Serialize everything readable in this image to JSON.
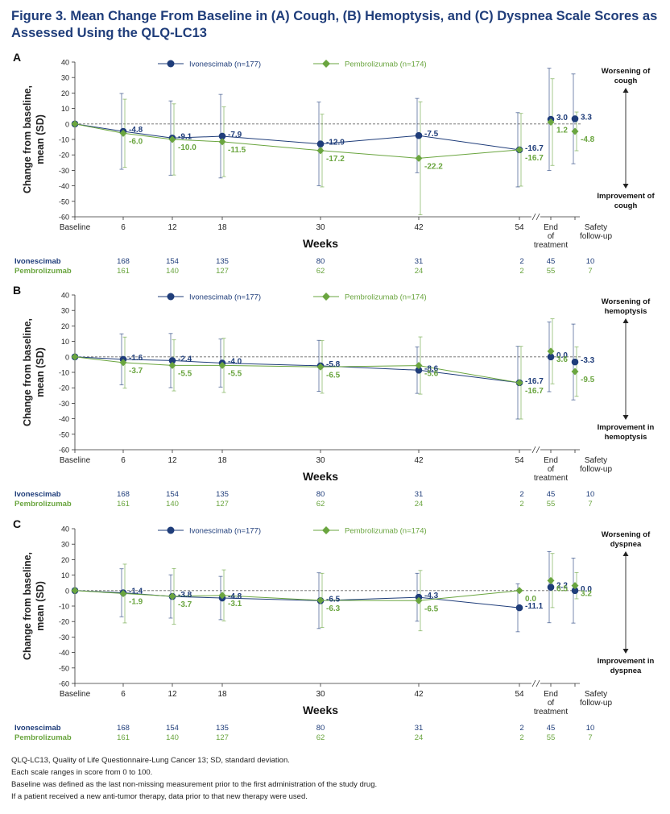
{
  "title": "Figure 3. Mean Change From Baseline in (A) Cough, (B) Hemoptysis, and (C) Dyspnea Scale Scores as Assessed Using the QLQ-LC13",
  "colors": {
    "ivo": "#1f3d7a",
    "pem": "#6aa53f",
    "error": "#888888",
    "text": "#222222",
    "title": "#1f3d7a"
  },
  "chart_data": [
    {
      "type": "line",
      "panel": "A",
      "xlabel": "Weeks",
      "ylabel": "Change from baseline, mean (SD)",
      "ylim": [
        -60,
        40
      ],
      "yticks": [
        "40",
        "30",
        "20",
        "10",
        "0",
        "-10",
        "-20",
        "-30",
        "-40",
        "-50",
        "-60"
      ],
      "categories": [
        "Baseline",
        "6",
        "12",
        "18",
        "30",
        "42",
        "54",
        "End of treatment",
        "Safety follow-up"
      ],
      "worse_label": "Worsening of cough",
      "better_label": "Improvement of cough",
      "series": [
        {
          "name": "Ivonescimab (n=177)",
          "key": "ivo",
          "values": [
            0,
            -4.8,
            -9.1,
            -7.9,
            -12.9,
            -7.5,
            -16.7,
            3.0,
            3.3
          ],
          "labels": [
            "",
            "-4.8",
            "-9.1",
            "-7.9",
            "-12.9",
            "-7.5",
            "-16.7",
            "3.0",
            "3.3"
          ],
          "sd": [
            null,
            24.5,
            24,
            27,
            27,
            24,
            24,
            33,
            29
          ]
        },
        {
          "name": "Pembrolizumab (n=174)",
          "key": "pem",
          "values": [
            0,
            -6.0,
            -10.0,
            -11.5,
            -17.2,
            -22.2,
            -16.7,
            1.2,
            -4.8
          ],
          "labels": [
            "",
            "-6.0",
            "-10.0",
            "-11.5",
            "-17.2",
            "-22.2",
            "-16.7",
            "1.2",
            "-4.8"
          ],
          "sd": [
            null,
            22,
            23,
            22.5,
            23.5,
            36.5,
            23.5,
            28,
            12.5
          ]
        }
      ],
      "n_at_risk": {
        "ivo_label": "Ivonescimab",
        "pem_label": "Pembrolizumab",
        "ivo": [
          "",
          "168",
          "154",
          "135",
          "80",
          "31",
          "2",
          "45",
          "10"
        ],
        "pem": [
          "",
          "161",
          "140",
          "127",
          "62",
          "24",
          "2",
          "55",
          "7"
        ]
      }
    },
    {
      "type": "line",
      "panel": "B",
      "xlabel": "Weeks",
      "ylabel": "Change from baseline, mean (SD)",
      "ylim": [
        -60,
        40
      ],
      "yticks": [
        "40",
        "30",
        "20",
        "10",
        "0",
        "-10",
        "-20",
        "-30",
        "-40",
        "-50",
        "-60"
      ],
      "categories": [
        "Baseline",
        "6",
        "12",
        "18",
        "30",
        "42",
        "54",
        "End of treatment",
        "Safety follow-up"
      ],
      "worse_label": "Worsening of hemoptysis",
      "better_label": "Improvement in hemoptysis",
      "series": [
        {
          "name": "Ivonescimab (n=177)",
          "key": "ivo",
          "values": [
            0,
            -1.6,
            -2.4,
            -4.0,
            -5.8,
            -8.6,
            -16.7,
            0.0,
            -3.3
          ],
          "labels": [
            "",
            "-1.6",
            "-2.4",
            "-4.0",
            "-5.8",
            "-8.6",
            "-16.7",
            "0.0",
            "-3.3"
          ],
          "sd": [
            null,
            16.5,
            17.5,
            15.5,
            16.5,
            15,
            23.5,
            22.5,
            24.5
          ]
        },
        {
          "name": "Pembrolizumab (n=174)",
          "key": "pem",
          "values": [
            0,
            -3.7,
            -5.5,
            -5.5,
            -6.5,
            -5.6,
            -16.7,
            3.6,
            -9.5
          ],
          "labels": [
            "",
            "-3.7",
            "-5.5",
            "-5.5",
            "-6.5",
            "-5.6",
            "-16.7",
            "3.6",
            "-9.5"
          ],
          "sd": [
            null,
            16.5,
            16.5,
            17.5,
            17,
            18.5,
            23.5,
            21,
            16
          ]
        }
      ],
      "n_at_risk": {
        "ivo_label": "Ivonescimab",
        "pem_label": "Pembrolizumab",
        "ivo": [
          "",
          "168",
          "154",
          "135",
          "80",
          "31",
          "2",
          "45",
          "10"
        ],
        "pem": [
          "",
          "161",
          "140",
          "127",
          "62",
          "24",
          "2",
          "55",
          "7"
        ]
      }
    },
    {
      "type": "line",
      "panel": "C",
      "xlabel": "Weeks",
      "ylabel": "Change from baseline, mean (SD)",
      "ylim": [
        -60,
        40
      ],
      "yticks": [
        "40",
        "30",
        "20",
        "10",
        "0",
        "-10",
        "-20",
        "-30",
        "-40",
        "-50",
        "-60"
      ],
      "categories": [
        "Baseline",
        "6",
        "12",
        "18",
        "30",
        "42",
        "54",
        "End of treatment",
        "Safety follow-up"
      ],
      "worse_label": "Worsening of dyspnea",
      "better_label": "Improvement in dyspnea",
      "series": [
        {
          "name": "Ivonescimab (n=177)",
          "key": "ivo",
          "values": [
            0,
            -1.4,
            -3.8,
            -4.8,
            -6.5,
            -4.3,
            -11.1,
            2.2,
            0.0
          ],
          "labels": [
            "",
            "-1.4",
            "-3.8",
            "-4.8",
            "-6.5",
            "-4.3",
            "-11.1",
            "2.2",
            "0.0"
          ],
          "sd": [
            null,
            15.5,
            14,
            14,
            18,
            15.5,
            15.5,
            23,
            21
          ]
        },
        {
          "name": "Pembrolizumab (n=174)",
          "key": "pem",
          "values": [
            0,
            -1.9,
            -3.7,
            -3.1,
            -6.3,
            -6.5,
            0.0,
            6.5,
            3.2
          ],
          "labels": [
            "",
            "-1.9",
            "-3.7",
            "-3.1",
            "-6.3",
            "-6.5",
            "0.0",
            "6.5",
            "3.2"
          ],
          "sd": [
            null,
            19,
            18,
            16.5,
            17.5,
            19.5,
            null,
            17.5,
            8.5
          ]
        }
      ],
      "n_at_risk": {
        "ivo_label": "Ivonescimab",
        "pem_label": "Pembrolizumab",
        "ivo": [
          "",
          "168",
          "154",
          "135",
          "80",
          "31",
          "2",
          "45",
          "10"
        ],
        "pem": [
          "",
          "161",
          "140",
          "127",
          "62",
          "24",
          "2",
          "55",
          "7"
        ]
      }
    }
  ],
  "footnotes": [
    "QLQ-LC13, Quality of Life Questionnaire-Lung Cancer 13; SD, standard deviation.",
    "Each scale ranges in score from 0 to 100.",
    "Baseline was defined as the last non-missing measurement prior to the first administration of the study drug.",
    "If a patient received a new anti-tumor therapy, data prior to that new therapy were used."
  ]
}
